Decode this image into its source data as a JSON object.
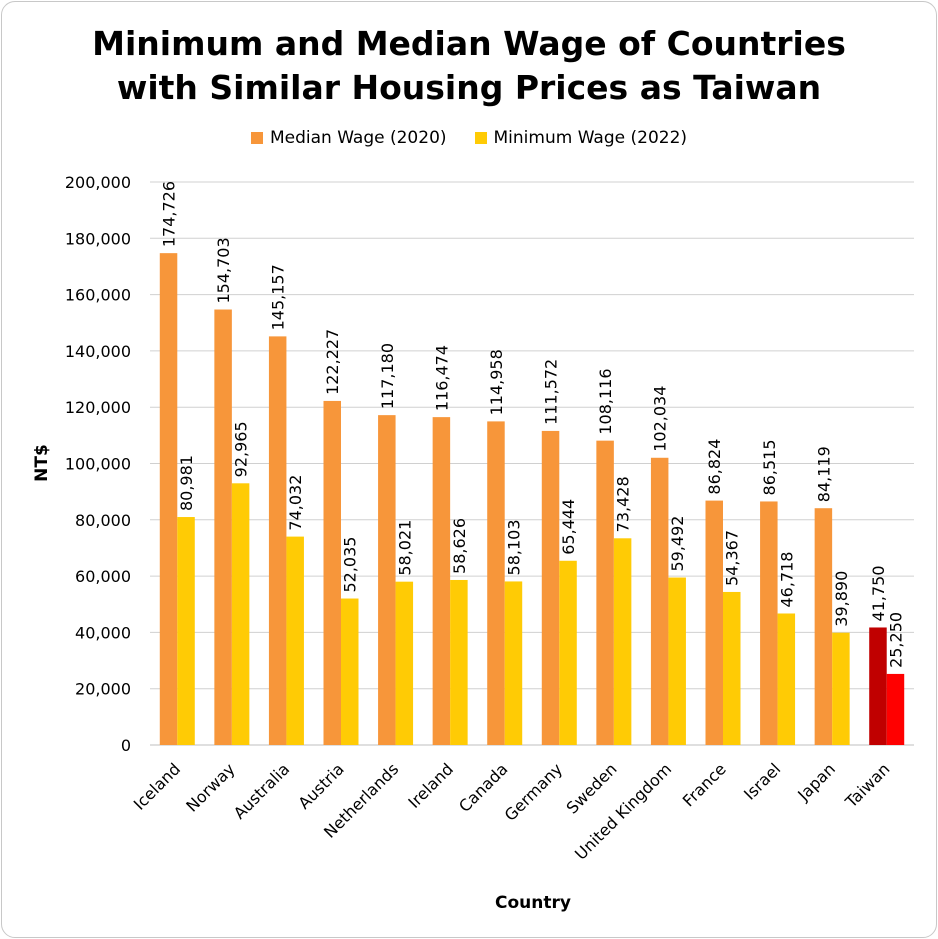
{
  "title_line1": "Minimum and Median Wage of Countries",
  "title_line2": "with Similar Housing Prices as Taiwan",
  "legend": {
    "median_label": "Median Wage (2020)",
    "minimum_label": "Minimum Wage (2022)"
  },
  "colors": {
    "median": "#f7963a",
    "minimum": "#ffcb05",
    "taiwan_median": "#c00000",
    "taiwan_minimum": "#ff0000",
    "grid": "#d0d0d0"
  },
  "chart_data": {
    "type": "bar",
    "title": "Minimum and Median Wage of Countries with Similar Housing Prices as Taiwan",
    "xlabel": "Country",
    "ylabel": "NT$",
    "ylim": [
      0,
      200000
    ],
    "yticks": [
      0,
      20000,
      40000,
      60000,
      80000,
      100000,
      120000,
      140000,
      160000,
      180000,
      200000
    ],
    "grid": true,
    "legend_position": "top",
    "categories": [
      "Iceland",
      "Norway",
      "Australia",
      "Austria",
      "Netherlands",
      "Ireland",
      "Canada",
      "Germany",
      "Sweden",
      "United Kingdom",
      "France",
      "Israel",
      "Japan",
      "Taiwan"
    ],
    "series": [
      {
        "name": "Median Wage (2020)",
        "values": [
          174726,
          154703,
          145157,
          122227,
          117180,
          116474,
          114958,
          111572,
          108116,
          102034,
          86824,
          86515,
          84119,
          41750
        ]
      },
      {
        "name": "Minimum Wage (2022)",
        "values": [
          80981,
          92965,
          74032,
          52035,
          58021,
          58626,
          58103,
          65444,
          73428,
          59492,
          54367,
          46718,
          39890,
          25250
        ]
      }
    ]
  }
}
